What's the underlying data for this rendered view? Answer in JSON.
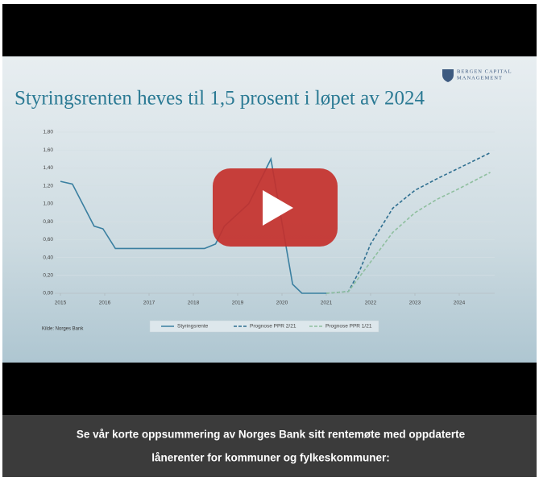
{
  "logo": [
    "BERGEN CAPITAL",
    "MANAGEMENT"
  ],
  "source": "Kilde: Norges Bank",
  "caption": [
    "Se vår korte oppsummering av Norges Bank sitt rentemøte med oppdaterte",
    "lånerenter for kommuner og fylkeskommuner:"
  ],
  "chart_data": {
    "type": "line",
    "title": "Styringsrenten heves til 1,5 prosent i løpet av 2024",
    "xlim": [
      2015,
      2024.8
    ],
    "xticks": [
      2015,
      2016,
      2017,
      2018,
      2019,
      2020,
      2021,
      2022,
      2023,
      2024
    ],
    "ylim": [
      0,
      1.8
    ],
    "yticks": [
      {
        "value": 0,
        "label": "0,00"
      },
      {
        "value": 0.2,
        "label": "0,20"
      },
      {
        "value": 0.4,
        "label": "0,40"
      },
      {
        "value": 0.6,
        "label": "0,60"
      },
      {
        "value": 0.8,
        "label": "0,80"
      },
      {
        "value": 1.0,
        "label": "1,00"
      },
      {
        "value": 1.2,
        "label": "1,20"
      },
      {
        "value": 1.4,
        "label": "1,40"
      },
      {
        "value": 1.6,
        "label": "1,60"
      },
      {
        "value": 1.8,
        "label": "1,80"
      }
    ],
    "grid": true,
    "legend": "bottom",
    "series": [
      {
        "name": "Styringsrente",
        "color": "#3a7fa0",
        "style": "solid",
        "x": [
          2015.0,
          2015.27,
          2015.76,
          2015.96,
          2016.24,
          2018.25,
          2018.5,
          2018.7,
          2019.25,
          2019.5,
          2019.75,
          2020.24,
          2020.45,
          2021.0
        ],
        "values": [
          1.25,
          1.22,
          0.75,
          0.72,
          0.5,
          0.5,
          0.55,
          0.75,
          1.0,
          1.25,
          1.5,
          0.1,
          0.0,
          0.0
        ]
      },
      {
        "name": "Prognose PPR 2/21",
        "color": "#2f6f90",
        "style": "dashed",
        "x": [
          2021.0,
          2021.5,
          2021.75,
          2022.0,
          2022.5,
          2023.0,
          2023.5,
          2024.0,
          2024.7
        ],
        "values": [
          0.0,
          0.02,
          0.25,
          0.55,
          0.95,
          1.15,
          1.28,
          1.4,
          1.57
        ]
      },
      {
        "name": "Prognose PPR 1/21",
        "color": "#8fbf9f",
        "style": "dashed",
        "x": [
          2021.0,
          2021.5,
          2022.0,
          2022.5,
          2023.0,
          2023.5,
          2024.0,
          2024.7
        ],
        "values": [
          0.0,
          0.02,
          0.35,
          0.68,
          0.9,
          1.05,
          1.17,
          1.35
        ]
      }
    ]
  }
}
